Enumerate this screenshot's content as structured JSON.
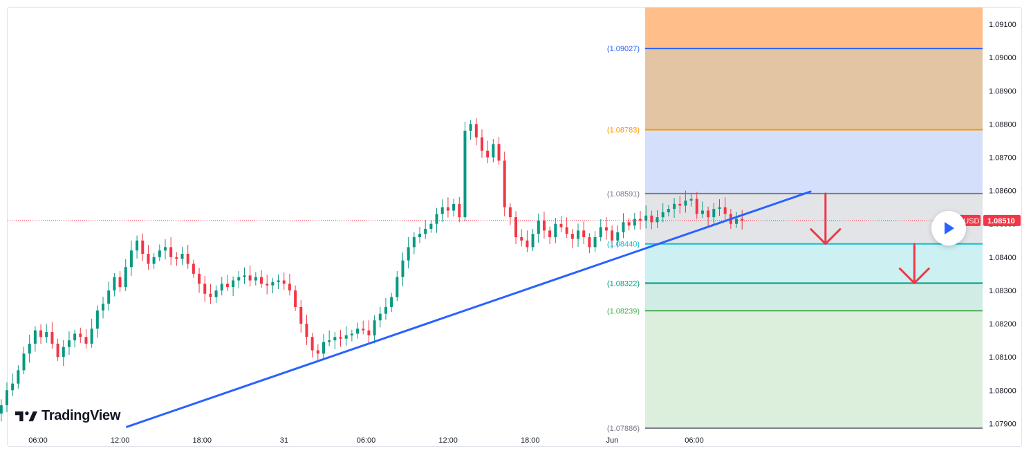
{
  "chart_data": {
    "type": "candlestick",
    "symbol": "EURUSD",
    "last_price": "1.08510",
    "price_axis": {
      "min": 1.0788,
      "max": 1.0915,
      "ticks": [
        "1.09100",
        "1.09000",
        "1.08900",
        "1.08800",
        "1.08700",
        "1.08600",
        "1.08500",
        "1.08400",
        "1.08300",
        "1.08200",
        "1.08100",
        "1.08000",
        "1.07900"
      ]
    },
    "time_axis": {
      "labels": [
        {
          "label": "06:00",
          "t": 6
        },
        {
          "label": "12:00",
          "t": 12
        },
        {
          "label": "18:00",
          "t": 18
        },
        {
          "label": "31",
          "t": 24
        },
        {
          "label": "06:00",
          "t": 30
        },
        {
          "label": "12:00",
          "t": 36
        },
        {
          "label": "18:00",
          "t": 42
        },
        {
          "label": "Jun",
          "t": 48
        },
        {
          "label": "06:00",
          "t": 54
        }
      ]
    },
    "fib_levels": [
      {
        "label": "(1.09027)",
        "value": 1.09027,
        "color": "#2962ff"
      },
      {
        "label": "(1.08783)",
        "value": 1.08783,
        "color": "#ff9800"
      },
      {
        "label": "(1.08591)",
        "value": 1.08591,
        "color": "#787b86"
      },
      {
        "label": "(1.08440)",
        "value": 1.0844,
        "color": "#00bcd4"
      },
      {
        "label": "(1.08322)",
        "value": 1.08322,
        "color": "#089981"
      },
      {
        "label": "(1.08239)",
        "value": 1.08239,
        "color": "#4caf50"
      },
      {
        "label": "(1.07886)",
        "value": 1.07886,
        "color": "#787b86"
      }
    ],
    "fib_zones": [
      {
        "from": 1.0915,
        "to": 1.09027,
        "color": "#ffbe8a"
      },
      {
        "from": 1.09027,
        "to": 1.08783,
        "color": "#e3c5a3"
      },
      {
        "from": 1.08783,
        "to": 1.08591,
        "color": "#d4e0fb"
      },
      {
        "from": 1.08591,
        "to": 1.0844,
        "color": "#e3e4e7"
      },
      {
        "from": 1.0844,
        "to": 1.08322,
        "color": "#cdf0f3"
      },
      {
        "from": 1.08322,
        "to": 1.08239,
        "color": "#d0ece5"
      },
      {
        "from": 1.08239,
        "to": 1.07886,
        "color": "#dbefdc"
      }
    ],
    "trendline": {
      "t1": 12.5,
      "p1": 1.0789,
      "t2": 62.5,
      "p2": 1.08597,
      "color": "#2962ff"
    },
    "arrows": [
      {
        "t": 63.6,
        "from": 1.08591,
        "to": 1.0844
      },
      {
        "t": 70.1,
        "from": 1.0844,
        "to": 1.08322
      }
    ],
    "closes": [
      1.0797,
      1.07975,
      1.0798,
      1.07965,
      1.0795,
      1.07935,
      1.0791,
      1.0793,
      1.07955,
      1.08,
      1.0802,
      1.0806,
      1.0811,
      1.0814,
      1.0818,
      1.0816,
      1.08175,
      1.0814,
      1.081,
      1.0813,
      1.0815,
      1.0817,
      1.0816,
      1.0814,
      1.08185,
      1.0824,
      1.0826,
      1.083,
      1.0834,
      1.0831,
      1.0837,
      1.0842,
      1.0845,
      1.0841,
      1.0838,
      1.084,
      1.0842,
      1.0843,
      1.084,
      1.08395,
      1.0841,
      1.0838,
      1.0835,
      1.0832,
      1.0829,
      1.0828,
      1.083,
      1.0832,
      1.0831,
      1.0833,
      1.0834,
      1.08345,
      1.0833,
      1.0834,
      1.0832,
      1.08315,
      1.08325,
      1.0833,
      1.0832,
      1.083,
      1.0825,
      1.082,
      1.0816,
      1.0812,
      1.0811,
      1.08145,
      1.0815,
      1.0816,
      1.08155,
      1.08165,
      1.0817,
      1.08185,
      1.0818,
      1.08165,
      1.0821,
      1.0823,
      1.0825,
      1.0828,
      1.0834,
      1.0839,
      1.0843,
      1.0846,
      1.0847,
      1.08485,
      1.085,
      1.0853,
      1.0855,
      1.0854,
      1.0856,
      1.0852,
      1.0878,
      1.088,
      1.0876,
      1.0872,
      1.087,
      1.0874,
      1.0869,
      1.0855,
      1.0852,
      1.0846,
      1.0845,
      1.0843,
      1.0847,
      1.0851,
      1.0848,
      1.0846,
      1.085,
      1.0849,
      1.0847,
      1.08455,
      1.0848,
      1.0846,
      1.0843,
      1.0846,
      1.0849,
      1.0848,
      1.0845,
      1.08475,
      1.08505,
      1.08495,
      1.08515,
      1.0851,
      1.08525,
      1.08505,
      1.0852,
      1.08535,
      1.08545,
      1.0856,
      1.08555,
      1.0857,
      1.08575,
      1.0853,
      1.0854,
      1.0852,
      1.08545,
      1.0855,
      1.0853,
      1.085,
      1.08515,
      1.0851
    ]
  }
}
